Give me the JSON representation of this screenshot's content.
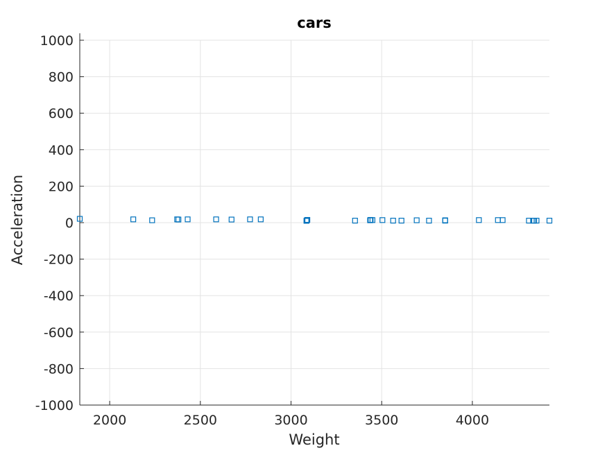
{
  "chart_data": {
    "type": "scatter",
    "title": "cars",
    "xlabel": "Weight",
    "ylabel": "Acceleration",
    "xlim": [
      1835,
      4425
    ],
    "ylim": [
      -1000,
      1000
    ],
    "xticks": [
      2000,
      2500,
      3000,
      3500,
      4000
    ],
    "yticks": [
      -1000,
      -800,
      -600,
      -400,
      -200,
      0,
      200,
      400,
      600,
      800,
      1000
    ],
    "grid": true,
    "legend": "none",
    "marker": "square-open",
    "marker_color": "#0072BD",
    "series": [
      {
        "x": [
          1835,
          2130,
          2234,
          2372,
          2379,
          2430,
          2587,
          2672,
          2774,
          2833,
          3085,
          3086,
          3090,
          3353,
          3436,
          3439,
          3449,
          3504,
          3563,
          3609,
          3693,
          3761,
          3850,
          3850,
          4036,
          4141,
          4167,
          4312,
          4335,
          4341,
          4354,
          4425
        ],
        "y": [
          21,
          18,
          13,
          18,
          17,
          18,
          18,
          17,
          18,
          18,
          10,
          12,
          15,
          11,
          13,
          15,
          14,
          14,
          11,
          11,
          13,
          11,
          11,
          13,
          14,
          14,
          14,
          11,
          11,
          11,
          11,
          11
        ]
      }
    ]
  }
}
